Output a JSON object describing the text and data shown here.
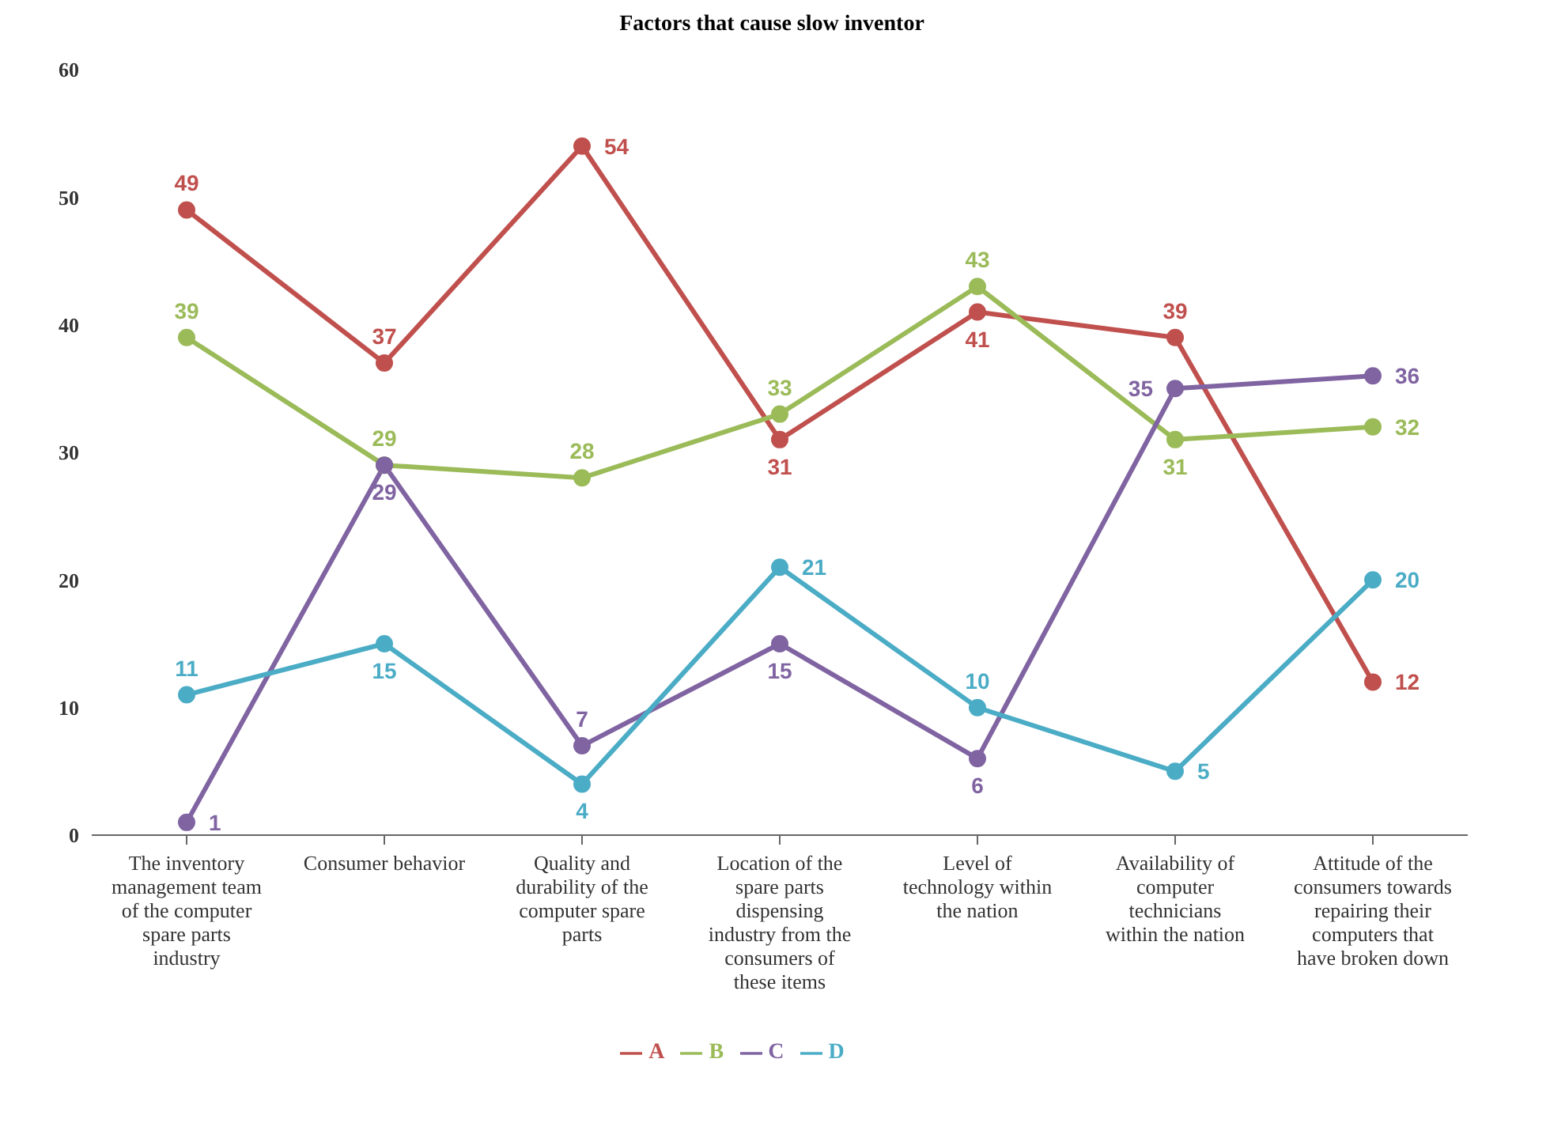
{
  "chart_data": {
    "type": "line",
    "title": "Factors that cause slow inventor",
    "categories": [
      "The inventory management team of the computer spare parts industry",
      "Consumer behavior",
      "Quality and durability of the computer spare parts",
      "Location of the spare parts dispensing industry from the consumers of these items",
      "Level of technology within the nation",
      "Availability of computer technicians within the nation",
      "Attitude of the consumers towards repairing their computers that have broken down"
    ],
    "series": [
      {
        "name": "A",
        "color": "#c0504d",
        "values": [
          49,
          37,
          54,
          31,
          41,
          39,
          12
        ]
      },
      {
        "name": "B",
        "color": "#9bbb59",
        "values": [
          39,
          29,
          28,
          33,
          43,
          31,
          32
        ]
      },
      {
        "name": "C",
        "color": "#8064a2",
        "values": [
          1,
          29,
          7,
          15,
          6,
          35,
          36
        ]
      },
      {
        "name": "D",
        "color": "#4bacc6",
        "values": [
          11,
          15,
          4,
          21,
          10,
          5,
          20
        ]
      }
    ],
    "ylim": [
      0,
      60
    ],
    "yticks": [
      0,
      10,
      20,
      30,
      40,
      50,
      60
    ],
    "grid": false,
    "legend": "bottom",
    "marker": "circle",
    "line_style": "solid",
    "data_labels": true
  }
}
